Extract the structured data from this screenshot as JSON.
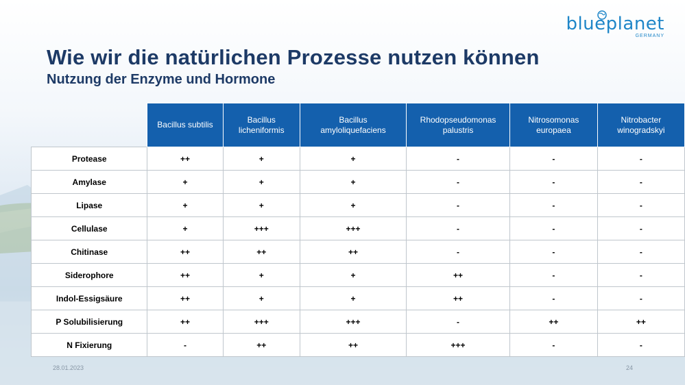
{
  "brand": {
    "name_part1": "blue",
    "name_part2": "planet",
    "country": "GERMANY",
    "color": "#1f86c8"
  },
  "title": "Wie wir die natürlichen Prozesse nutzen können",
  "subtitle": "Nutzung der Enzyme und Hormone",
  "table": {
    "columns": [
      "Bacillus subtilis",
      "Bacillus licheniformis",
      "Bacillus amyloliquefaciens",
      "Rhodopseudomonas palustris",
      "Nitrosomonas europaea",
      "Nitrobacter winogradskyi"
    ],
    "column_lines": [
      [
        "Bacillus subtilis"
      ],
      [
        "Bacillus",
        "licheniformis"
      ],
      [
        "Bacillus",
        "amyloliquefaciens"
      ],
      [
        "Rhodopseudomonas",
        "palustris"
      ],
      [
        "Nitrosomonas",
        "europaea"
      ],
      [
        "Nitrobacter",
        "winogradskyi"
      ]
    ],
    "rows": [
      {
        "label": "Protease",
        "values": [
          "++",
          "+",
          "+",
          "-",
          "-",
          "-"
        ]
      },
      {
        "label": "Amylase",
        "values": [
          "+",
          "+",
          "+",
          "-",
          "-",
          "-"
        ]
      },
      {
        "label": "Lipase",
        "values": [
          "+",
          "+",
          "+",
          "-",
          "-",
          "-"
        ]
      },
      {
        "label": "Cellulase",
        "values": [
          "+",
          "+++",
          "+++",
          "-",
          "-",
          "-"
        ]
      },
      {
        "label": "Chitinase",
        "values": [
          "++",
          "++",
          "++",
          "-",
          "-",
          "-"
        ]
      },
      {
        "label": "Siderophore",
        "values": [
          "++",
          "+",
          "+",
          "++",
          "-",
          "-"
        ]
      },
      {
        "label": "Indol-Essigsäure",
        "values": [
          "++",
          "+",
          "+",
          "++",
          "-",
          "-"
        ]
      },
      {
        "label": "P Solubilisierung",
        "values": [
          "++",
          "+++",
          "+++",
          "-",
          "++",
          "++"
        ]
      },
      {
        "label": "N Fixierung",
        "values": [
          "-",
          "++",
          "++",
          "+++",
          "-",
          "-"
        ]
      }
    ],
    "header_color": "#1460ad"
  },
  "footer": {
    "date": "28.01.2023",
    "page": "24"
  }
}
